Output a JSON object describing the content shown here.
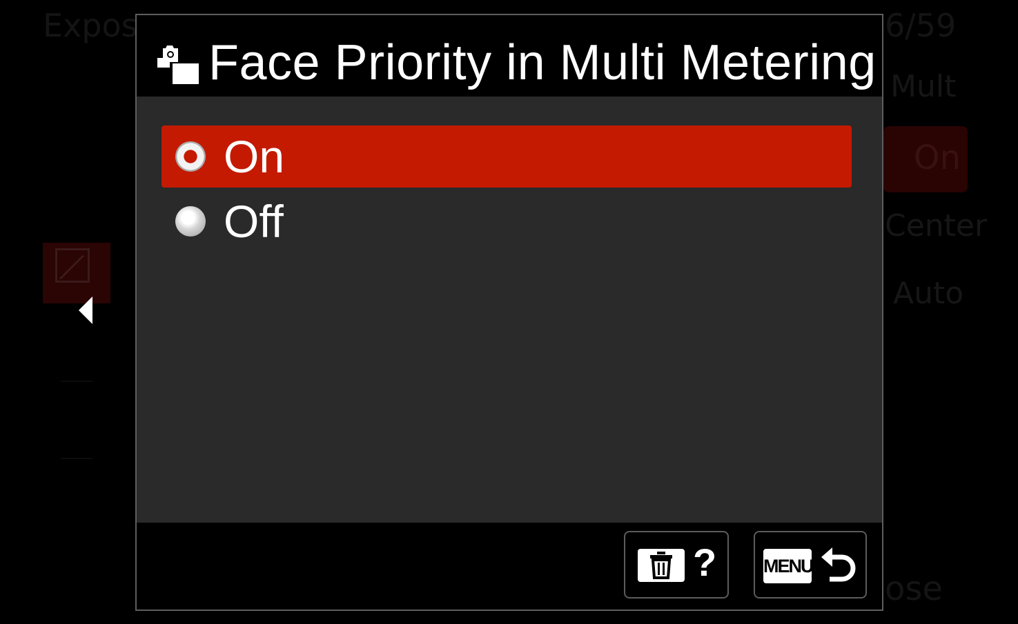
{
  "background_menu": {
    "title": "Expos",
    "page_indicator": "6/59",
    "items": [
      "Mult",
      "On",
      "Center",
      "Auto"
    ],
    "close_label": "ose"
  },
  "dialog": {
    "title": "Face Priority in Multi Metering",
    "title_icon": "face-metering-icon",
    "options": [
      {
        "label": "On",
        "selected": true
      },
      {
        "label": "Off",
        "selected": false
      }
    ],
    "footer": {
      "help_key_icon": "trash-icon",
      "help_label": "?",
      "menu_key_label": "MENU",
      "back_icon": "return-arrow-icon"
    }
  },
  "colors": {
    "selection": "#c41a02",
    "dialog_bg": "#2a2a2a",
    "header_bg": "#000000"
  }
}
